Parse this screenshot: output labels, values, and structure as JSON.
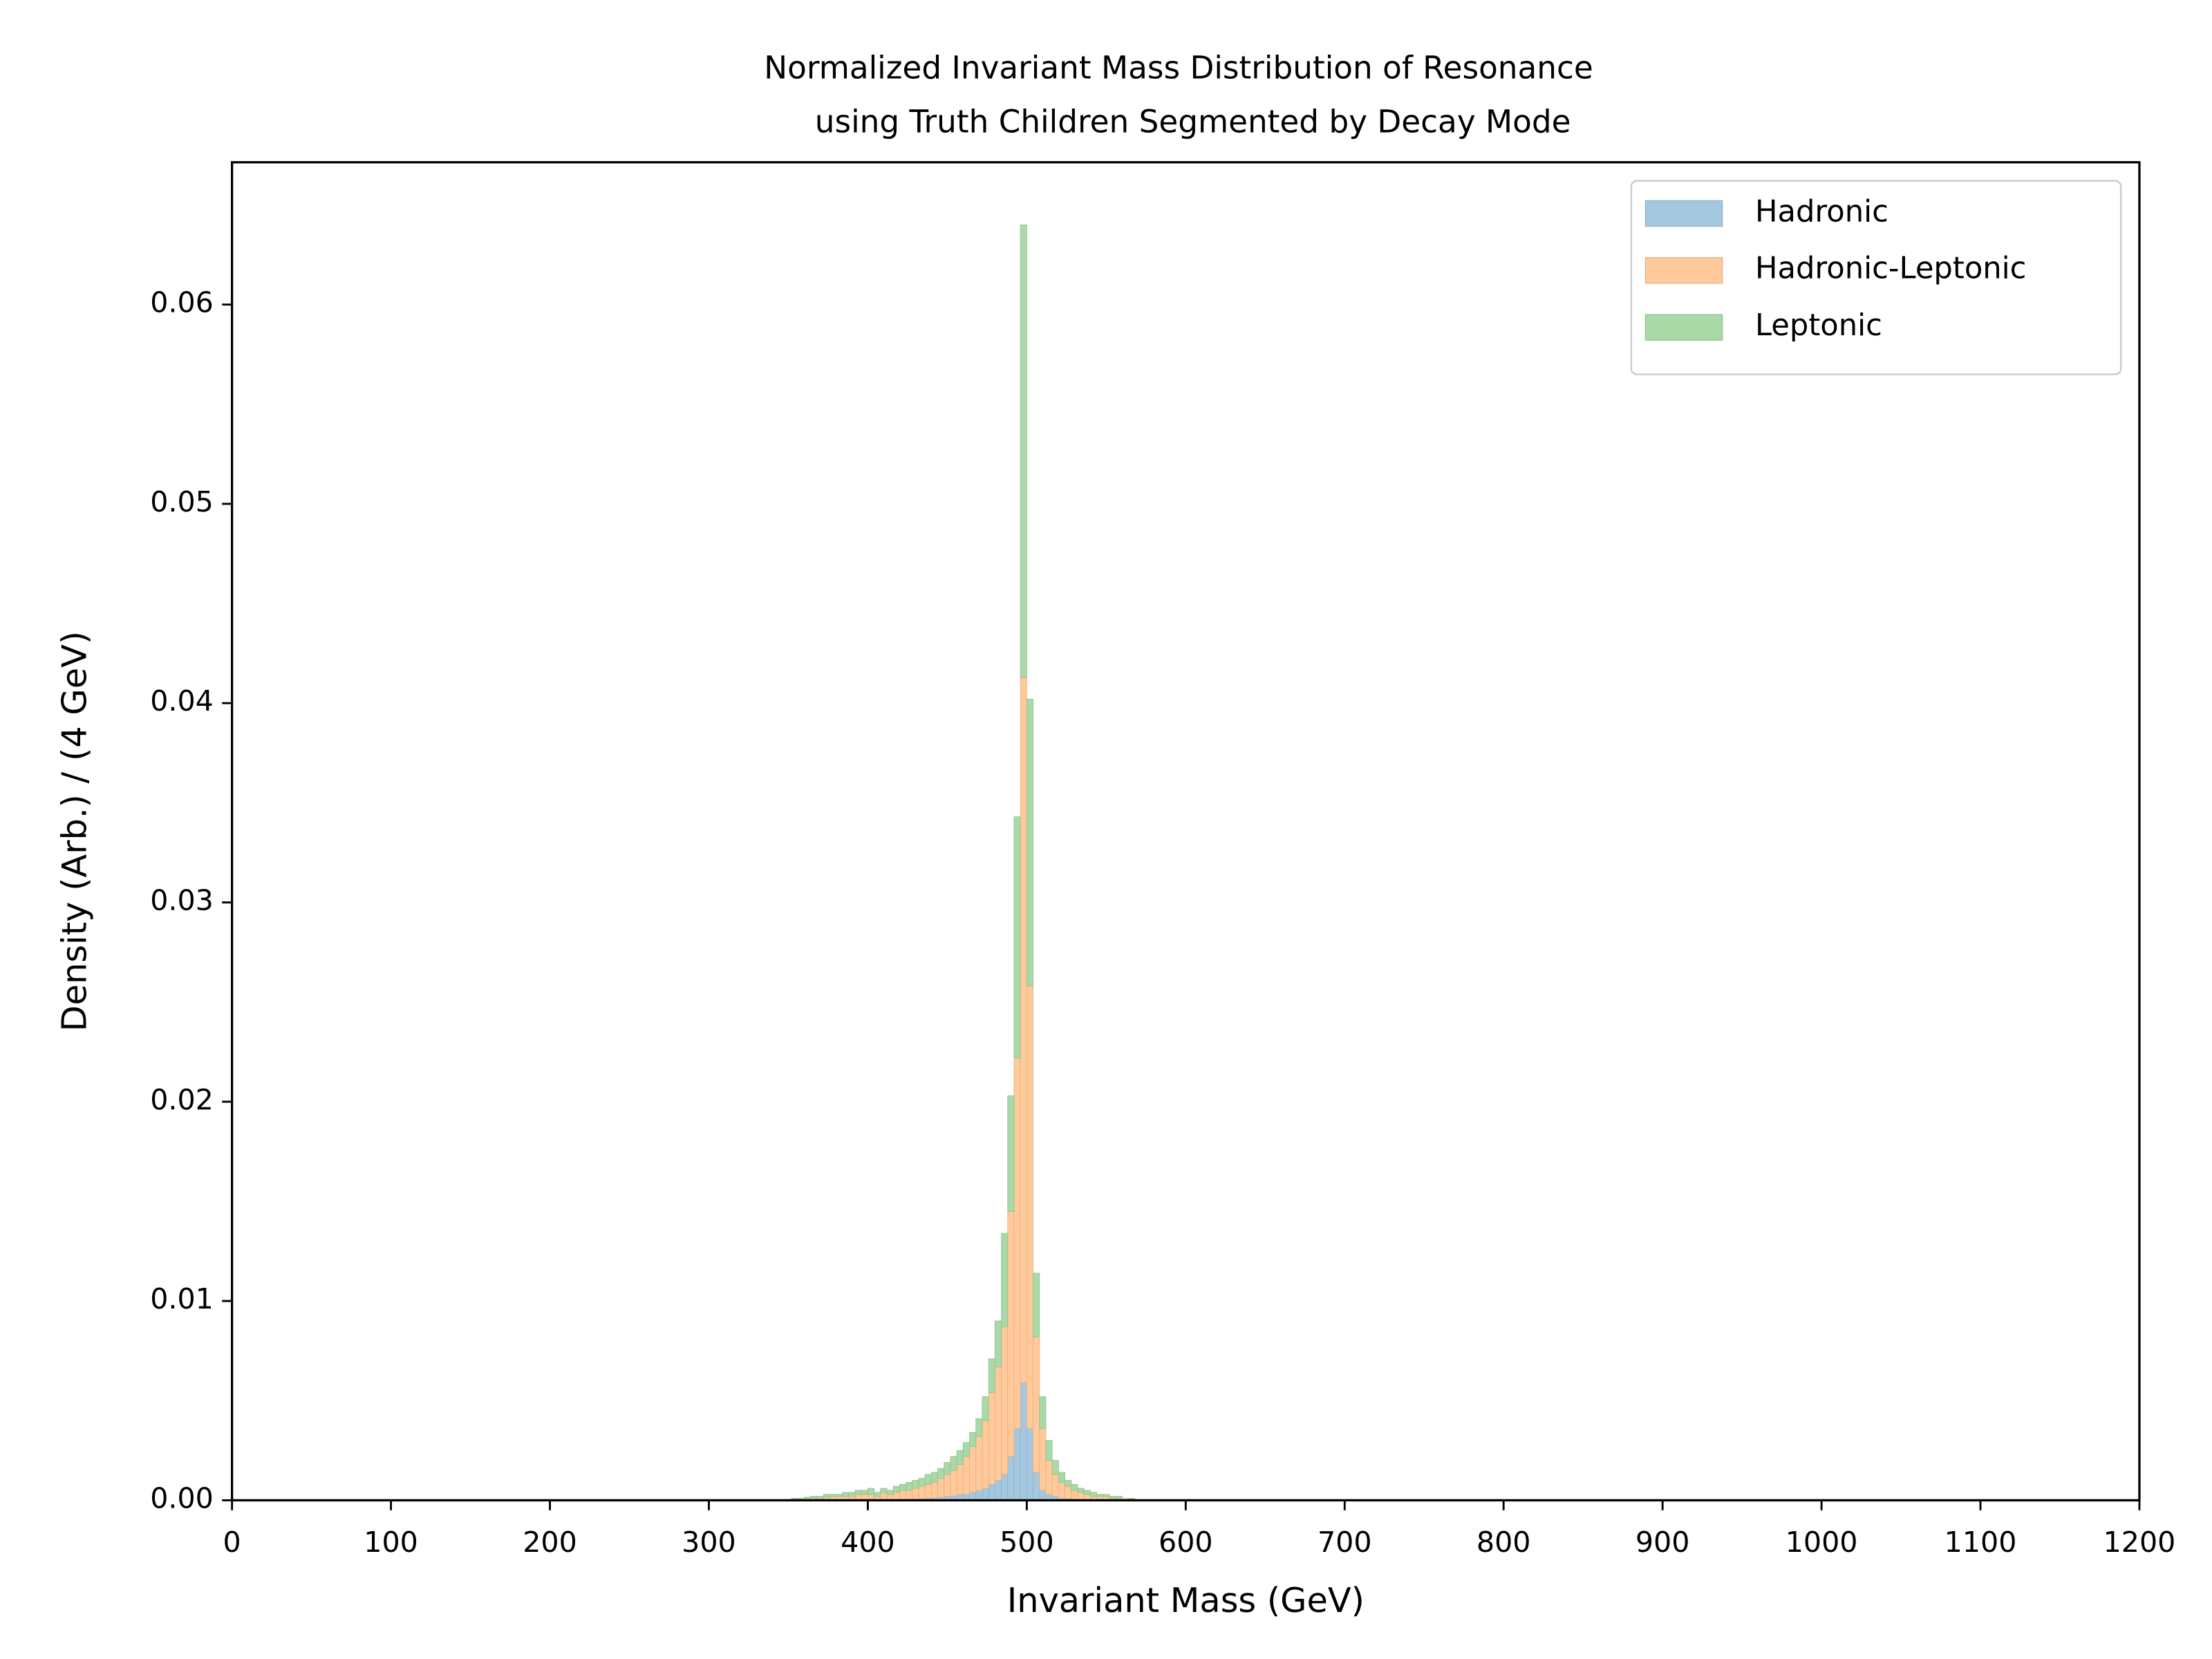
{
  "chart_data": {
    "type": "histogram",
    "title": [
      "Normalized Invariant Mass Distribution of Resonance",
      "using Truth Children Segmented by Decay Mode"
    ],
    "xlabel": "Invariant Mass (GeV)",
    "ylabel": "Density (Arb.) / (4 GeV)",
    "stacked": true,
    "legend": "upper right",
    "xlim": [
      0,
      1200
    ],
    "ylim": [
      0,
      0.06714
    ],
    "xticks": [
      0,
      100,
      200,
      300,
      400,
      500,
      600,
      700,
      800,
      900,
      1000,
      1100,
      1200
    ],
    "yticks": [
      {
        "value": 0,
        "label": "0.00"
      },
      0.01,
      0.02,
      0.03,
      0.04,
      0.05,
      0.06
    ],
    "bins": [
      352,
      356,
      360,
      364,
      368,
      372,
      376,
      380,
      384,
      388,
      392,
      396,
      400,
      404,
      408,
      412,
      416,
      420,
      424,
      428,
      432,
      436,
      440,
      444,
      448,
      452,
      456,
      460,
      464,
      468,
      472,
      476,
      480,
      484,
      488,
      492,
      496,
      500,
      504,
      508,
      512,
      516,
      520,
      524,
      528,
      532,
      536,
      540,
      544,
      548,
      552,
      556,
      560,
      564,
      568
    ],
    "series": [
      {
        "name": "Hadronic",
        "color": "#a5c8e1",
        "edge": "#8fb1cc",
        "values": [
          0,
          0,
          0,
          0,
          0,
          0,
          0,
          0,
          0,
          0,
          0,
          2e-05,
          2e-05,
          2e-05,
          3e-05,
          3e-05,
          4e-05,
          5e-05,
          6e-05,
          7e-05,
          8e-05,
          0.0001,
          0.00012,
          0.00015,
          0.0002,
          0.00022,
          0.0003,
          0.0003,
          0.0004,
          0.0005,
          0.0006,
          0.0008,
          0.001,
          0.0013,
          0.0022,
          0.0036,
          0.0059,
          0.0036,
          0.0014,
          0.0005,
          0.0003,
          0.0002,
          0.0001,
          0.0001,
          5e-05,
          4e-05,
          3e-05,
          2e-05,
          2e-05,
          1e-05,
          1e-05,
          0,
          0,
          0
        ]
      },
      {
        "name": "Hadronic-Leptonic",
        "color": "#ffc999",
        "edge": "#e6b086",
        "values": [
          5e-05,
          5e-05,
          0.0001,
          0.0001,
          0.0001,
          0.00015,
          0.0002,
          0.0002,
          0.0002,
          0.0002,
          0.0003,
          0.00028,
          0.00028,
          0.00018,
          0.00037,
          0.00027,
          0.00036,
          0.00045,
          0.00044,
          0.00053,
          0.00062,
          0.0007,
          0.00078,
          0.00095,
          0.0011,
          0.00128,
          0.0015,
          0.0019,
          0.0023,
          0.0027,
          0.0034,
          0.0046,
          0.0057,
          0.0074,
          0.0123,
          0.0186,
          0.0354,
          0.0222,
          0.0068,
          0.0031,
          0.0017,
          0.0011,
          0.0008,
          0.0006,
          0.00045,
          0.00036,
          0.00027,
          0.00018,
          0.00018,
          0.00019,
          9e-05,
          0.0001,
          0.0001,
          5e-05
        ]
      },
      {
        "name": "Leptonic",
        "color": "#aad9a8",
        "edge": "#90c08e",
        "values": [
          5e-05,
          5e-05,
          5e-05,
          0.0001,
          0.0001,
          0.00015,
          0.0001,
          0.0001,
          0.0002,
          0.0002,
          0.0002,
          0.0002,
          0.0003,
          0.0002,
          0.0002,
          0.0002,
          0.0003,
          0.0003,
          0.0004,
          0.0004,
          0.0004,
          0.0005,
          0.0005,
          0.0005,
          0.0006,
          0.0007,
          0.0007,
          0.0007,
          0.0007,
          0.0009,
          0.0012,
          0.0017,
          0.0023,
          0.0047,
          0.0058,
          0.0121,
          0.0227,
          0.0144,
          0.0032,
          0.0016,
          0.001,
          0.0007,
          0.0005,
          0.0003,
          0.0003,
          0.0002,
          0.0002,
          0.0002,
          0.0001,
          0.0001,
          0.0001,
          0.0001,
          0,
          5e-05
        ]
      }
    ]
  }
}
